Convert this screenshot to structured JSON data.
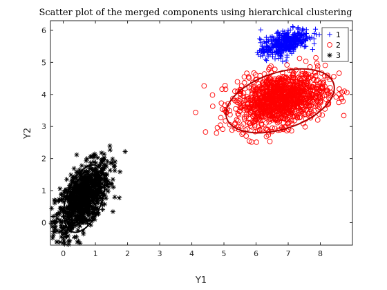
{
  "chart_data": {
    "type": "scatter",
    "title": "Scatter plot of the merged components using hierarchical clustering",
    "xlabel": "Y1",
    "ylabel": "Y2",
    "xlim": [
      -0.4,
      9.0
    ],
    "ylim": [
      -0.7,
      6.3
    ],
    "xticks": [
      0,
      1,
      2,
      3,
      4,
      5,
      6,
      7,
      8
    ],
    "yticks": [
      0,
      1,
      2,
      3,
      4,
      5,
      6
    ],
    "grid": false,
    "legend_position": "top-right",
    "series": [
      {
        "name": "1",
        "marker": "plus",
        "color": "#0000ff",
        "center": [
          6.9,
          5.6
        ],
        "spread": [
          0.38,
          0.22
        ],
        "correlation": 0.55,
        "count": 420,
        "ellipse": null
      },
      {
        "name": "2",
        "marker": "circle",
        "color": "#ff0000",
        "center": [
          6.75,
          3.85
        ],
        "spread": [
          0.7,
          0.42
        ],
        "correlation": 0.3,
        "count": 1200,
        "ellipse": {
          "center": [
            6.75,
            3.8
          ],
          "rx": 1.75,
          "ry": 0.88,
          "angle_deg": 18,
          "color": "#b00000"
        }
      },
      {
        "name": "3",
        "marker": "star",
        "color": "#000000",
        "center": [
          0.6,
          0.75
        ],
        "spread": [
          0.42,
          0.58
        ],
        "correlation": 0.6,
        "count": 900,
        "ellipse": {
          "center": [
            0.65,
            0.75
          ],
          "rx": 0.55,
          "ry": 1.1,
          "angle_deg": -20,
          "color": "#000000"
        }
      }
    ]
  }
}
